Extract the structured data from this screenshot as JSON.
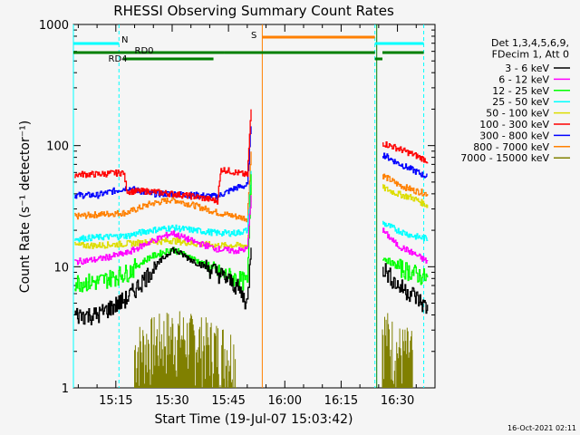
{
  "chart_data": {
    "type": "line",
    "title": "RHESSI Observing Summary Count Rates",
    "xlabel": "Start Time (19-Jul-07 15:03:42)",
    "ylabel": "Count Rate (s⁻¹ detector⁻¹)",
    "yscale": "log",
    "ylim": [
      1,
      1000
    ],
    "xlim": [
      "15:03:42",
      "16:40:00"
    ],
    "x_ticks": [
      "15:15",
      "15:30",
      "15:45",
      "16:00",
      "16:15",
      "16:30"
    ],
    "y_ticks": [
      "1",
      "10",
      "100",
      "1000"
    ],
    "legend_header": [
      "Det 1,3,4,5,6,9,",
      "FDecim 1, Att 0"
    ],
    "legend_position": "right",
    "series": [
      {
        "name": "3 - 6 keV",
        "color": "#000000",
        "points": [
          [
            "15:04",
            4
          ],
          [
            "15:10",
            4
          ],
          [
            "15:18",
            5.5
          ],
          [
            "15:24",
            9
          ],
          [
            "15:30",
            14
          ],
          [
            "15:36",
            11
          ],
          [
            "15:42",
            9
          ],
          [
            "15:47",
            7
          ],
          [
            "15:50",
            5
          ],
          [
            "15:51",
            15
          ]
        ],
        "points2": [
          [
            "16:26",
            10
          ],
          [
            "16:30",
            7
          ],
          [
            "16:34",
            6
          ],
          [
            "16:38",
            4.5
          ]
        ]
      },
      {
        "name": "6 - 12 keV",
        "color": "#ff00ff",
        "points": [
          [
            "15:04",
            11
          ],
          [
            "15:10",
            11.5
          ],
          [
            "15:18",
            13
          ],
          [
            "15:24",
            16
          ],
          [
            "15:30",
            19
          ],
          [
            "15:36",
            16
          ],
          [
            "15:42",
            14
          ],
          [
            "15:47",
            13.5
          ],
          [
            "15:50",
            14
          ],
          [
            "15:51",
            40
          ]
        ],
        "points2": [
          [
            "16:26",
            20
          ],
          [
            "16:30",
            15
          ],
          [
            "16:34",
            13
          ],
          [
            "16:38",
            11
          ]
        ]
      },
      {
        "name": "12 - 25 keV",
        "color": "#00ff00",
        "points": [
          [
            "15:04",
            7.5
          ],
          [
            "15:10",
            7.5
          ],
          [
            "15:18",
            9
          ],
          [
            "15:24",
            12
          ],
          [
            "15:30",
            14
          ],
          [
            "15:36",
            11.5
          ],
          [
            "15:42",
            9
          ],
          [
            "15:47",
            8
          ],
          [
            "15:50",
            7.5
          ],
          [
            "15:51",
            60
          ]
        ],
        "points2": [
          [
            "16:26",
            12
          ],
          [
            "16:30",
            10
          ],
          [
            "16:34",
            9
          ],
          [
            "16:38",
            8
          ]
        ]
      },
      {
        "name": "25 - 50 keV",
        "color": "#00ffff",
        "points": [
          [
            "15:04",
            17
          ],
          [
            "15:10",
            17.5
          ],
          [
            "15:18",
            18
          ],
          [
            "15:24",
            20
          ],
          [
            "15:30",
            21
          ],
          [
            "15:36",
            20
          ],
          [
            "15:42",
            19
          ],
          [
            "15:47",
            19
          ],
          [
            "15:50",
            20
          ],
          [
            "15:51",
            60
          ]
        ],
        "points2": [
          [
            "16:26",
            23
          ],
          [
            "16:30",
            20
          ],
          [
            "16:34",
            18
          ],
          [
            "16:38",
            17
          ]
        ]
      },
      {
        "name": "50 - 100 keV",
        "color": "#dddd00",
        "points": [
          [
            "15:04",
            15
          ],
          [
            "15:10",
            15
          ],
          [
            "15:18",
            15.5
          ],
          [
            "15:24",
            16
          ],
          [
            "15:30",
            16.5
          ],
          [
            "15:36",
            15.5
          ],
          [
            "15:42",
            15
          ],
          [
            "15:47",
            15
          ],
          [
            "15:50",
            15
          ],
          [
            "15:51",
            45
          ]
        ],
        "points2": [
          [
            "16:26",
            45
          ],
          [
            "16:30",
            40
          ],
          [
            "16:34",
            37
          ],
          [
            "16:38",
            32
          ]
        ]
      },
      {
        "name": "100 - 300 keV",
        "color": "#ff0000",
        "points": [
          [
            "15:04",
            58
          ],
          [
            "15:10",
            58
          ],
          [
            "15:17",
            60
          ],
          [
            "15:18",
            42
          ],
          [
            "15:24",
            42
          ],
          [
            "15:30",
            40
          ],
          [
            "15:36",
            38
          ],
          [
            "15:42",
            35
          ],
          [
            "15:43",
            64
          ],
          [
            "15:47",
            60
          ],
          [
            "15:50",
            57
          ],
          [
            "15:51",
            200
          ]
        ],
        "points2": [
          [
            "16:26",
            105
          ],
          [
            "16:30",
            95
          ],
          [
            "16:34",
            85
          ],
          [
            "16:38",
            75
          ]
        ]
      },
      {
        "name": "300 - 800 keV",
        "color": "#0000ff",
        "points": [
          [
            "15:04",
            39
          ],
          [
            "15:10",
            39
          ],
          [
            "15:18",
            45
          ],
          [
            "15:24",
            40
          ],
          [
            "15:30",
            40
          ],
          [
            "15:36",
            39
          ],
          [
            "15:42",
            38
          ],
          [
            "15:47",
            45
          ],
          [
            "15:50",
            47
          ],
          [
            "15:51",
            150
          ]
        ],
        "points2": [
          [
            "16:26",
            85
          ],
          [
            "16:30",
            72
          ],
          [
            "16:34",
            63
          ],
          [
            "16:38",
            55
          ]
        ]
      },
      {
        "name": "800 - 7000 keV",
        "color": "#ff8000",
        "points": [
          [
            "15:04",
            26
          ],
          [
            "15:10",
            27
          ],
          [
            "15:18",
            28
          ],
          [
            "15:24",
            33
          ],
          [
            "15:30",
            36
          ],
          [
            "15:36",
            32
          ],
          [
            "15:42",
            28
          ],
          [
            "15:47",
            26
          ],
          [
            "15:50",
            25
          ],
          [
            "15:51",
            90
          ]
        ],
        "points2": [
          [
            "16:26",
            57
          ],
          [
            "16:30",
            48
          ],
          [
            "16:34",
            43
          ],
          [
            "16:38",
            40
          ]
        ]
      },
      {
        "name": "7000 - 15000 keV",
        "color": "#808000",
        "points": [
          [
            "15:20",
            1.6
          ],
          [
            "15:30",
            2.2
          ],
          [
            "15:40",
            1.8
          ],
          [
            "15:47",
            1.5
          ]
        ],
        "points2": [
          [
            "16:26",
            2.4
          ],
          [
            "16:30",
            1.6
          ],
          [
            "16:34",
            1.5
          ]
        ]
      }
    ],
    "flags": [
      {
        "label": "N",
        "color": "#00ffff",
        "ranges": [
          [
            "15:03:42",
            "15:15:50"
          ],
          [
            "16:24",
            "16:37"
          ]
        ]
      },
      {
        "label": "S",
        "color": "#ff8000",
        "ranges": [
          [
            "15:54",
            "16:24"
          ]
        ]
      },
      {
        "label": "RD0",
        "color": "#008000",
        "ranges": [
          [
            "15:03:42",
            "15:44"
          ],
          [
            "15:44",
            "16:24"
          ],
          [
            "16:26",
            "16:37"
          ]
        ]
      },
      {
        "label": "RD4",
        "color": "#008000",
        "ranges": [
          [
            "15:17",
            "15:41"
          ],
          [
            "16:24",
            "16:26"
          ]
        ]
      }
    ],
    "annotations": [
      "16-Oct-2021 02:11"
    ]
  }
}
